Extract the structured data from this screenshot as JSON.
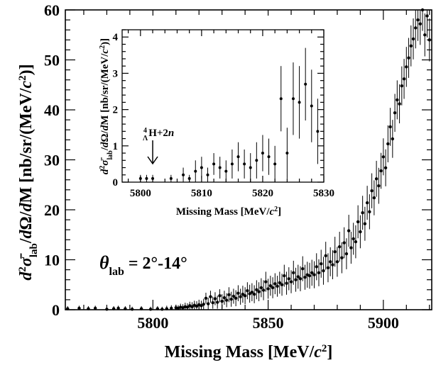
{
  "chart_data": [
    {
      "type": "scatter",
      "panel": "main",
      "xlabel": "Missing Mass [MeV/c²]",
      "ylabel": "d²σ̄lab/dΩ/dM [nb/sr/(MeV/c²)]",
      "xlim": [
        5762,
        5921
      ],
      "ylim": [
        0,
        60
      ],
      "x_ticks": [
        5800,
        5850,
        5900
      ],
      "y_ticks": [
        0,
        10,
        20,
        30,
        40,
        50,
        60
      ],
      "annotation": "θlab = 2°-14°",
      "error_bars": true,
      "grid": false,
      "x": [
        5763,
        5768,
        5772,
        5775,
        5780,
        5783,
        5785,
        5788,
        5791,
        5795,
        5799,
        5802,
        5804,
        5806,
        5808,
        5810,
        5811,
        5812,
        5813,
        5814,
        5815,
        5816,
        5817,
        5818,
        5819,
        5820,
        5821,
        5822,
        5823,
        5824,
        5825,
        5826,
        5827,
        5828,
        5829,
        5830,
        5831,
        5832,
        5833,
        5834,
        5835,
        5836,
        5837,
        5838,
        5839,
        5840,
        5841,
        5842,
        5843,
        5844,
        5845,
        5846,
        5847,
        5848,
        5849,
        5850,
        5851,
        5852,
        5853,
        5854,
        5855,
        5856,
        5857,
        5858,
        5859,
        5860,
        5861,
        5862,
        5863,
        5864,
        5865,
        5866,
        5867,
        5868,
        5869,
        5870,
        5871,
        5872,
        5873,
        5874,
        5875,
        5876,
        5877,
        5878,
        5879,
        5880,
        5881,
        5882,
        5883,
        5884,
        5885,
        5886,
        5887,
        5888,
        5889,
        5890,
        5891,
        5892,
        5893,
        5894,
        5895,
        5896,
        5897,
        5898,
        5899,
        5900,
        5901,
        5902,
        5903,
        5904,
        5905,
        5906,
        5907,
        5908,
        5909,
        5910,
        5911,
        5912,
        5913,
        5914,
        5915,
        5916,
        5917,
        5918,
        5919,
        5920
      ],
      "y": [
        0.2,
        0.3,
        0.2,
        0.3,
        0.1,
        0.2,
        0.3,
        0.2,
        0.1,
        0.2,
        0.1,
        0.2,
        0.1,
        0.2,
        0.3,
        0.4,
        0.3,
        0.5,
        0.4,
        0.6,
        0.5,
        0.8,
        0.6,
        0.9,
        0.7,
        1.0,
        0.8,
        1.1,
        2.3,
        1.2,
        2.6,
        1.4,
        2.2,
        1.5,
        2.8,
        1.7,
        2.4,
        1.9,
        3.0,
        2.1,
        2.7,
        2.3,
        3.3,
        2.6,
        3.1,
        2.8,
        3.8,
        3.2,
        3.5,
        3.1,
        4.0,
        3.6,
        4.4,
        3.9,
        5.6,
        4.2,
        4.8,
        4.4,
        5.2,
        4.7,
        5.4,
        5.0,
        6.8,
        5.3,
        6.2,
        5.6,
        7.4,
        6.0,
        6.6,
        6.2,
        8.2,
        6.5,
        7.0,
        6.8,
        7.4,
        7.0,
        8.6,
        7.4,
        9.2,
        7.8,
        10.8,
        8.4,
        9.6,
        9.0,
        11.6,
        9.6,
        12.6,
        10.4,
        13.4,
        11.2,
        15.8,
        12.4,
        14.2,
        13.6,
        17.6,
        15.6,
        19.4,
        17.2,
        21.4,
        19.6,
        23.8,
        22.4,
        26.2,
        24.8,
        27.8,
        30.6,
        28.4,
        33.2,
        36.6,
        34.2,
        39.4,
        42.0,
        41.2,
        44.8,
        46.2,
        48.6,
        50.4,
        52.8,
        54.2,
        56.4,
        58.0,
        57.2,
        60.0,
        55.0,
        58.8,
        54.0
      ],
      "err": [
        0.5,
        0.5,
        0.5,
        0.5,
        0.5,
        0.5,
        0.5,
        0.5,
        0.5,
        0.5,
        0.5,
        0.5,
        0.5,
        0.6,
        0.6,
        0.6,
        0.6,
        0.7,
        0.7,
        0.8,
        0.8,
        0.8,
        0.9,
        0.9,
        1.0,
        1.0,
        1.0,
        1.1,
        1.1,
        1.2,
        1.2,
        1.2,
        1.3,
        1.3,
        1.3,
        1.4,
        1.4,
        1.4,
        1.5,
        1.5,
        1.5,
        1.6,
        1.6,
        1.6,
        1.7,
        1.7,
        1.7,
        1.8,
        1.8,
        1.8,
        1.9,
        1.9,
        1.9,
        2.0,
        2.0,
        2.0,
        2.0,
        2.1,
        2.1,
        2.1,
        2.2,
        2.2,
        2.2,
        2.3,
        2.3,
        2.3,
        2.4,
        2.4,
        2.4,
        2.5,
        2.5,
        2.5,
        2.6,
        2.6,
        2.6,
        2.7,
        2.7,
        2.7,
        2.8,
        2.8,
        2.8,
        2.9,
        2.9,
        2.9,
        3.0,
        3.0,
        3.0,
        3.1,
        3.1,
        3.1,
        3.2,
        3.2,
        3.2,
        3.3,
        3.3,
        3.3,
        3.4,
        3.4,
        3.4,
        3.5,
        3.5,
        3.5,
        3.6,
        3.6,
        3.6,
        3.7,
        3.7,
        3.7,
        3.8,
        3.8,
        3.8,
        3.9,
        3.9,
        3.9,
        4.0,
        4.0,
        4.0,
        4.1,
        4.1,
        4.1,
        4.2,
        4.2,
        4.2,
        4.3,
        4.3,
        4.3
      ]
    },
    {
      "type": "scatter",
      "panel": "inset",
      "xlabel": "Missing Mass [MeV/c²]",
      "ylabel": "d²σ̄lab/dΩ/dM [nb/sr/(MeV/c²)]",
      "xlim": [
        5797,
        5830
      ],
      "ylim": [
        0,
        4.2
      ],
      "x_ticks": [
        5800,
        5810,
        5820,
        5830
      ],
      "y_ticks": [
        0,
        1,
        2,
        3,
        4
      ],
      "annotation": "ΛH+2n",
      "annotation_superscript": "4",
      "annotation_x": 5802,
      "error_bars": true,
      "grid": false,
      "x": [
        5800,
        5801,
        5802,
        5805,
        5807,
        5808,
        5809,
        5810,
        5811,
        5812,
        5813,
        5814,
        5815,
        5816,
        5817,
        5818,
        5819,
        5820,
        5821,
        5822,
        5823,
        5824,
        5825,
        5826,
        5827,
        5828,
        5829
      ],
      "y": [
        0.1,
        0.1,
        0.1,
        0.1,
        0.2,
        0.1,
        0.3,
        0.4,
        0.2,
        0.5,
        0.4,
        0.3,
        0.5,
        0.7,
        0.5,
        0.4,
        0.6,
        0.8,
        0.7,
        0.5,
        2.3,
        0.8,
        2.3,
        2.2,
        2.7,
        2.1,
        1.4
      ],
      "err": [
        0.1,
        0.1,
        0.1,
        0.1,
        0.2,
        0.1,
        0.3,
        0.3,
        0.2,
        0.3,
        0.3,
        0.3,
        0.4,
        0.4,
        0.4,
        0.4,
        0.5,
        0.5,
        0.5,
        0.5,
        0.9,
        0.7,
        1.0,
        1.0,
        1.0,
        1.0,
        0.9
      ]
    }
  ]
}
